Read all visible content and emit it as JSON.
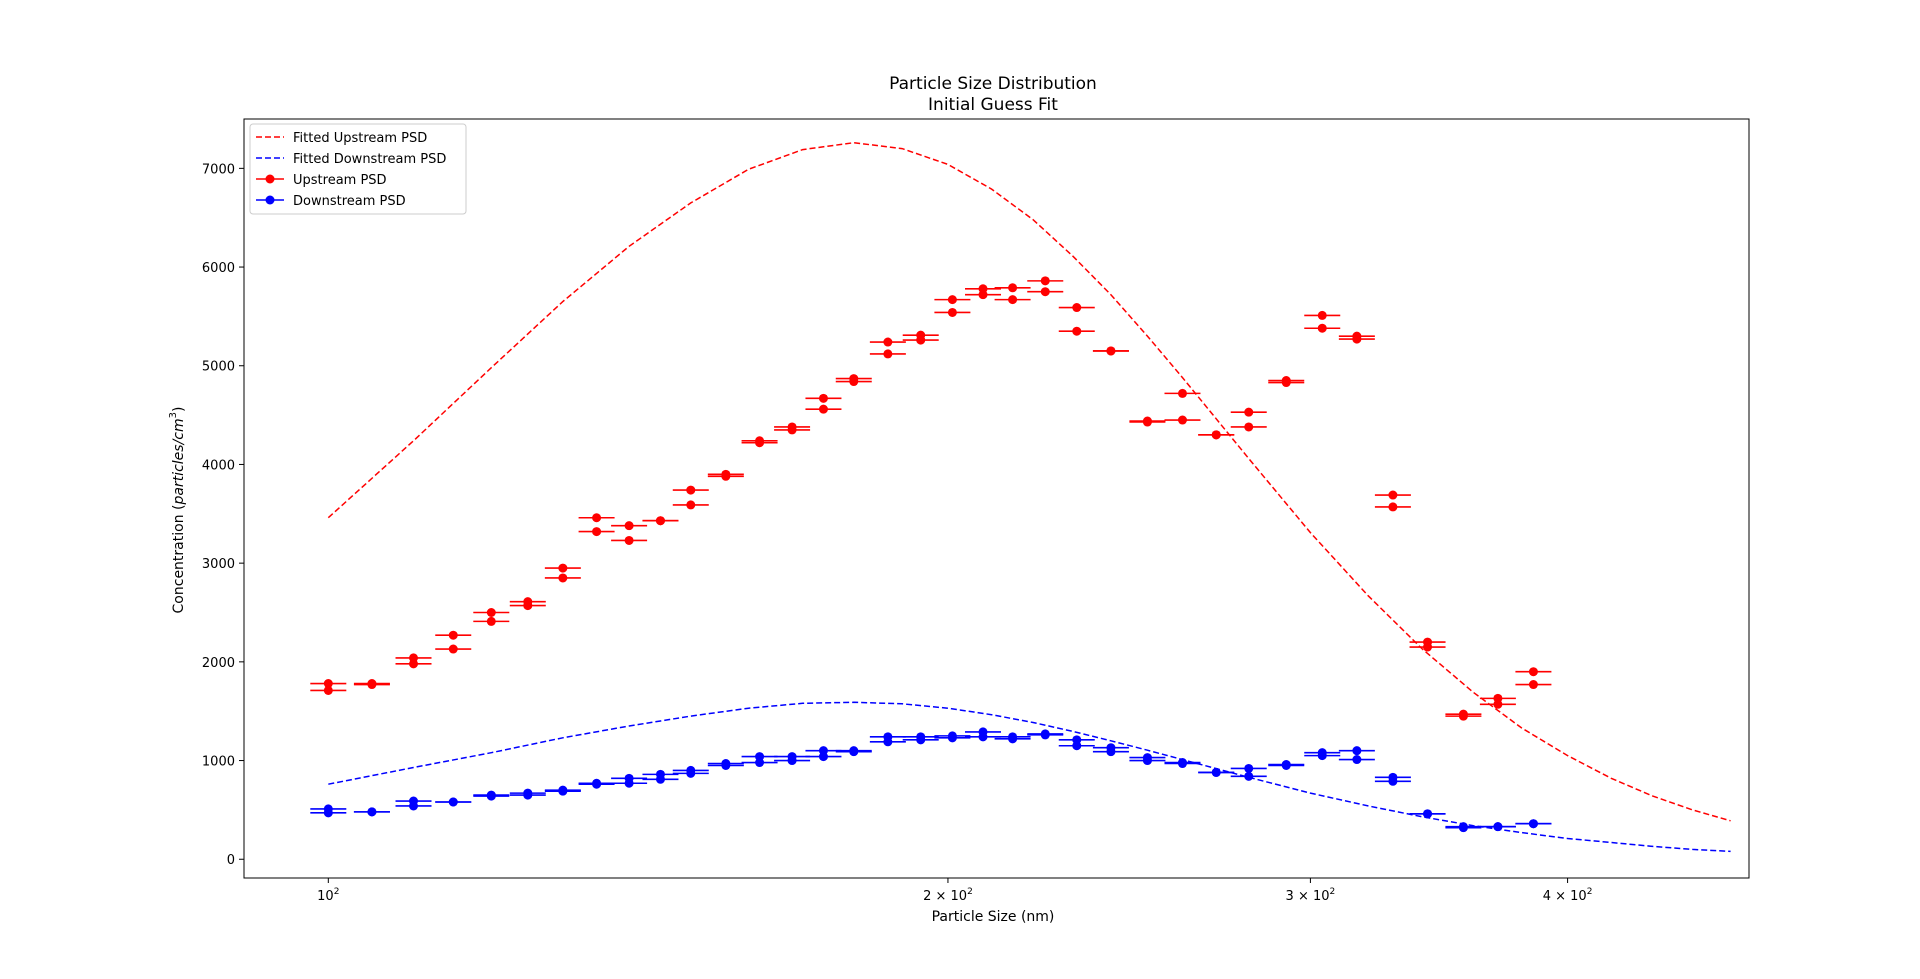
{
  "chart_data": {
    "type": "scatter",
    "title": "Particle Size Distribution",
    "subtitle": "Initial Guess Fit",
    "xlabel": "Particle Size (nm)",
    "ylabel_prefix": "Concentration (",
    "ylabel_math": "particles/cm",
    "ylabel_exp": "3",
    "ylabel_suffix": ")",
    "xscale": "log",
    "xlim": [
      91,
      490
    ],
    "ylim": [
      -190,
      7500
    ],
    "grid": false,
    "legend_position": "upper-left",
    "x_ticks": [
      {
        "value": 100,
        "base": "10",
        "exp": "2"
      },
      {
        "value": 200,
        "base": "2 × 10",
        "exp": "2"
      },
      {
        "value": 300,
        "base": "3 × 10",
        "exp": "2"
      },
      {
        "value": 400,
        "base": "4 × 10",
        "exp": "2"
      }
    ],
    "y_ticks": [
      0,
      1000,
      2000,
      3000,
      4000,
      5000,
      6000,
      7000
    ],
    "colors": {
      "upstream": "#ff0000",
      "downstream": "#0000ff",
      "frame": "#000000"
    },
    "legend": [
      {
        "label": "Fitted Upstream PSD",
        "series": "fit_up"
      },
      {
        "label": "Fitted Downstream PSD",
        "series": "fit_down"
      },
      {
        "label": "Upstream PSD",
        "series": "up"
      },
      {
        "label": "Downstream PSD",
        "series": "down"
      }
    ],
    "fitted_upstream": {
      "x": [
        100,
        110,
        120,
        130,
        140,
        150,
        160,
        170,
        180,
        190,
        200,
        210,
        220,
        230,
        240,
        250,
        260,
        280,
        300,
        320,
        340,
        360,
        380,
        400,
        420,
        440,
        460,
        480
      ],
      "y": [
        3460,
        4240,
        4980,
        5650,
        6210,
        6650,
        6990,
        7190,
        7260,
        7200,
        7040,
        6790,
        6480,
        6110,
        5720,
        5300,
        4880,
        4060,
        3310,
        2670,
        2130,
        1690,
        1330,
        1050,
        820,
        640,
        500,
        390
      ]
    },
    "fitted_downstream": {
      "x": [
        100,
        110,
        120,
        130,
        140,
        150,
        160,
        170,
        180,
        190,
        200,
        210,
        220,
        230,
        240,
        250,
        260,
        280,
        300,
        320,
        340,
        360,
        380,
        400,
        420,
        440,
        460,
        480
      ],
      "y": [
        760,
        930,
        1080,
        1230,
        1350,
        1450,
        1530,
        1580,
        1590,
        1575,
        1530,
        1465,
        1385,
        1295,
        1200,
        1105,
        1010,
        830,
        670,
        540,
        430,
        340,
        270,
        210,
        170,
        130,
        100,
        80
      ]
    },
    "upstream_points": [
      {
        "x": 100,
        "values": [
          1710,
          1780
        ]
      },
      {
        "x": 105,
        "values": [
          1770,
          1780
        ]
      },
      {
        "x": 110,
        "values": [
          1980,
          2040
        ]
      },
      {
        "x": 115,
        "values": [
          2130,
          2270
        ]
      },
      {
        "x": 120,
        "values": [
          2410,
          2500
        ]
      },
      {
        "x": 125,
        "values": [
          2570,
          2610
        ]
      },
      {
        "x": 130,
        "values": [
          2850,
          2950
        ]
      },
      {
        "x": 135,
        "values": [
          3320,
          3460
        ]
      },
      {
        "x": 140,
        "values": [
          3230,
          3380
        ]
      },
      {
        "x": 145,
        "values": [
          3430,
          3430
        ]
      },
      {
        "x": 150,
        "values": [
          3590,
          3740
        ]
      },
      {
        "x": 156,
        "values": [
          3880,
          3900
        ]
      },
      {
        "x": 162,
        "values": [
          4220,
          4240
        ]
      },
      {
        "x": 168,
        "values": [
          4350,
          4380
        ]
      },
      {
        "x": 174,
        "values": [
          4560,
          4670
        ]
      },
      {
        "x": 180,
        "values": [
          4840,
          4870
        ]
      },
      {
        "x": 187,
        "values": [
          5120,
          5240
        ]
      },
      {
        "x": 194,
        "values": [
          5260,
          5310
        ]
      },
      {
        "x": 201,
        "values": [
          5540,
          5670
        ]
      },
      {
        "x": 208,
        "values": [
          5720,
          5780
        ]
      },
      {
        "x": 215,
        "values": [
          5670,
          5790
        ]
      },
      {
        "x": 223,
        "values": [
          5750,
          5860
        ]
      },
      {
        "x": 231,
        "values": [
          5350,
          5590
        ]
      },
      {
        "x": 240,
        "values": [
          5150,
          5150
        ]
      },
      {
        "x": 250,
        "values": [
          4430,
          4440
        ]
      },
      {
        "x": 260,
        "values": [
          4450,
          4720
        ]
      },
      {
        "x": 270,
        "values": [
          4300,
          4300
        ]
      },
      {
        "x": 280,
        "values": [
          4380,
          4530
        ]
      },
      {
        "x": 292,
        "values": [
          4830,
          4850
        ]
      },
      {
        "x": 304,
        "values": [
          5380,
          5510
        ]
      },
      {
        "x": 316,
        "values": [
          5270,
          5300
        ]
      },
      {
        "x": 329,
        "values": [
          3570,
          3690
        ]
      },
      {
        "x": 342,
        "values": [
          2150,
          2200
        ]
      },
      {
        "x": 356,
        "values": [
          1450,
          1470
        ]
      },
      {
        "x": 370,
        "values": [
          1570,
          1630
        ]
      },
      {
        "x": 385,
        "values": [
          1770,
          1900
        ]
      }
    ],
    "downstream_points": [
      {
        "x": 100,
        "values": [
          470,
          510
        ]
      },
      {
        "x": 105,
        "values": [
          480,
          480
        ]
      },
      {
        "x": 110,
        "values": [
          540,
          590
        ]
      },
      {
        "x": 115,
        "values": [
          580,
          580
        ]
      },
      {
        "x": 120,
        "values": [
          640,
          650
        ]
      },
      {
        "x": 125,
        "values": [
          650,
          670
        ]
      },
      {
        "x": 130,
        "values": [
          690,
          700
        ]
      },
      {
        "x": 135,
        "values": [
          760,
          770
        ]
      },
      {
        "x": 140,
        "values": [
          770,
          820
        ]
      },
      {
        "x": 145,
        "values": [
          810,
          860
        ]
      },
      {
        "x": 150,
        "values": [
          870,
          900
        ]
      },
      {
        "x": 156,
        "values": [
          950,
          970
        ]
      },
      {
        "x": 162,
        "values": [
          980,
          1040
        ]
      },
      {
        "x": 168,
        "values": [
          1000,
          1040
        ]
      },
      {
        "x": 174,
        "values": [
          1040,
          1100
        ]
      },
      {
        "x": 180,
        "values": [
          1090,
          1100
        ]
      },
      {
        "x": 187,
        "values": [
          1190,
          1240
        ]
      },
      {
        "x": 194,
        "values": [
          1210,
          1240
        ]
      },
      {
        "x": 201,
        "values": [
          1230,
          1250
        ]
      },
      {
        "x": 208,
        "values": [
          1240,
          1290
        ]
      },
      {
        "x": 215,
        "values": [
          1220,
          1240
        ]
      },
      {
        "x": 223,
        "values": [
          1260,
          1270
        ]
      },
      {
        "x": 231,
        "values": [
          1150,
          1210
        ]
      },
      {
        "x": 240,
        "values": [
          1090,
          1130
        ]
      },
      {
        "x": 250,
        "values": [
          1000,
          1030
        ]
      },
      {
        "x": 260,
        "values": [
          970,
          980
        ]
      },
      {
        "x": 270,
        "values": [
          880,
          880
        ]
      },
      {
        "x": 280,
        "values": [
          840,
          920
        ]
      },
      {
        "x": 292,
        "values": [
          950,
          960
        ]
      },
      {
        "x": 304,
        "values": [
          1050,
          1080
        ]
      },
      {
        "x": 316,
        "values": [
          1010,
          1100
        ]
      },
      {
        "x": 329,
        "values": [
          790,
          830
        ]
      },
      {
        "x": 342,
        "values": [
          460,
          460
        ]
      },
      {
        "x": 356,
        "values": [
          320,
          330
        ]
      },
      {
        "x": 370,
        "values": [
          330,
          330
        ]
      },
      {
        "x": 385,
        "values": [
          360,
          360
        ]
      }
    ]
  }
}
